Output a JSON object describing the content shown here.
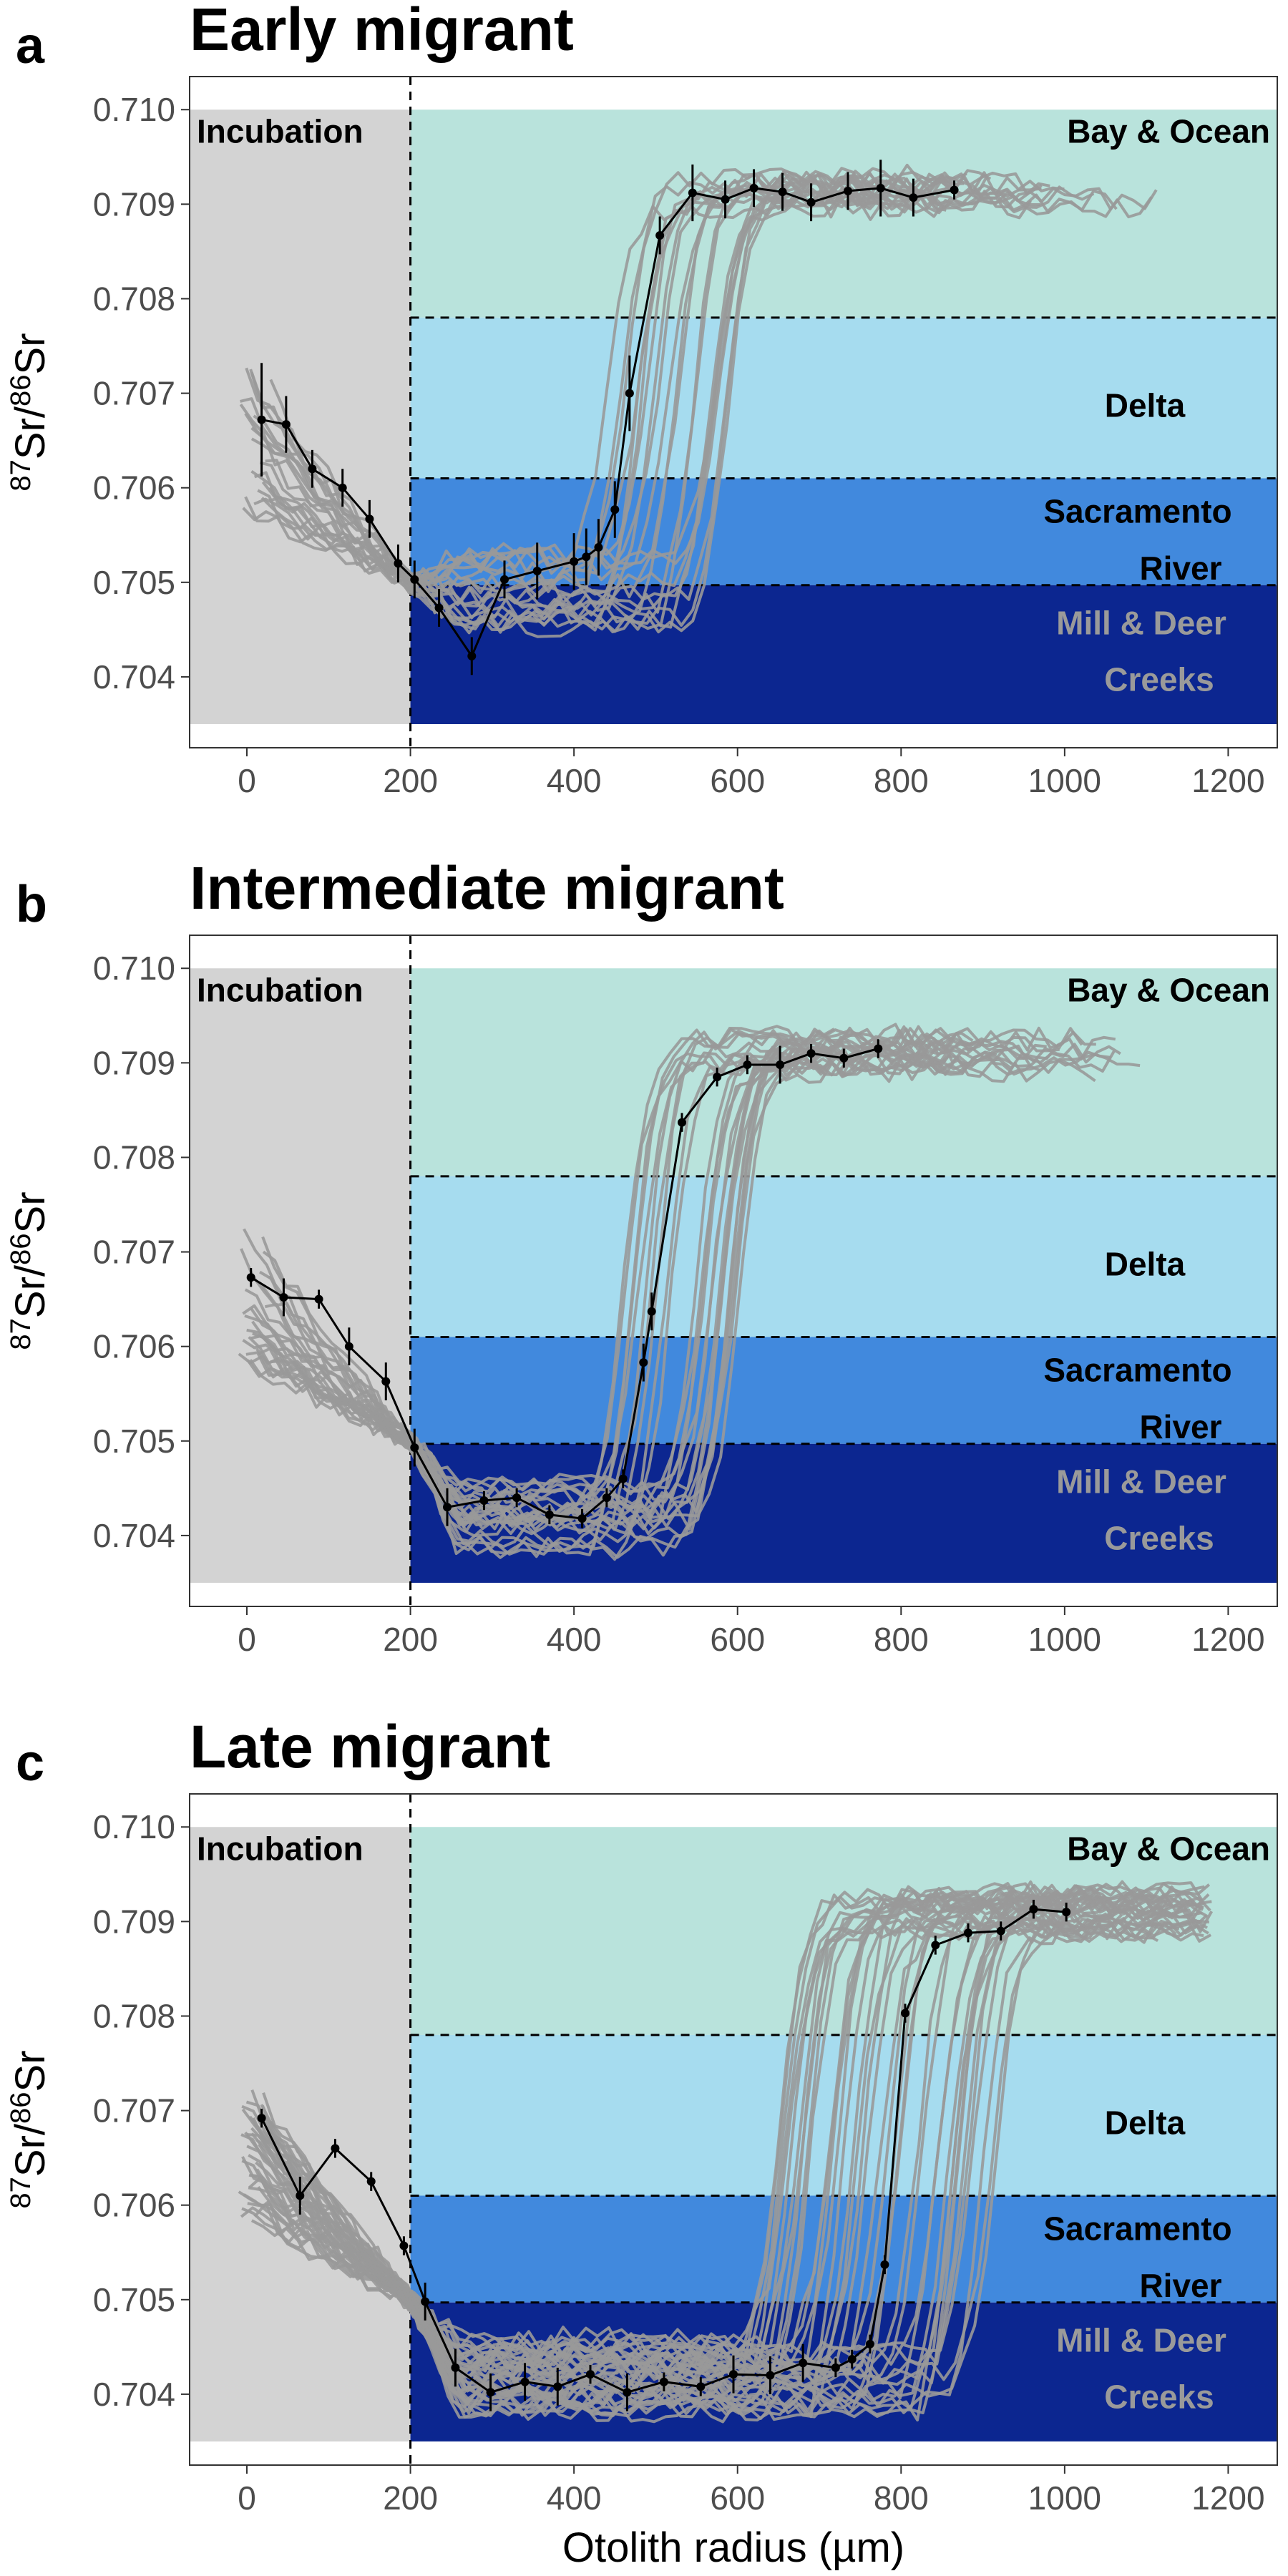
{
  "figure": {
    "x_axis_title": "Otolith radius (µm)",
    "y_axis_title": {
      "sup1": "87",
      "base1": "Sr/",
      "sup2": "86",
      "base2": "Sr"
    }
  },
  "colors": {
    "incubation": "#d3d3d3",
    "bay_ocean": "#b9e3dc",
    "delta": "#a6dcef",
    "sacramento": "#4189dd",
    "mill_deer": "#0c2690",
    "fish_lines": "#999999",
    "mean_line": "#000000",
    "mill_deer_label": "#9a9a9a"
  },
  "zone_labels": {
    "incubation": "Incubation",
    "bay_ocean": "Bay & Ocean",
    "delta": "Delta",
    "sacramento_line1": "Sacramento",
    "sacramento_line2": "River",
    "mill_deer_line1": "Mill & Deer",
    "mill_deer_line2": "Creeks"
  },
  "panels": [
    {
      "letter": "a",
      "title": "Early migrant"
    },
    {
      "letter": "b",
      "title": "Intermediate migrant"
    },
    {
      "letter": "c",
      "title": "Late migrant"
    }
  ],
  "chart_data": [
    {
      "type": "line",
      "title": "Early migrant",
      "xlabel": "",
      "ylabel": "87Sr/86Sr",
      "xlim": [
        -70,
        1260
      ],
      "ylim": [
        0.70325,
        0.71035
      ],
      "xticks": [
        0,
        200,
        400,
        600,
        800,
        1000,
        1200
      ],
      "yticks": [
        0.704,
        0.705,
        0.706,
        0.707,
        0.708,
        0.709,
        0.71
      ],
      "ytick_labels": [
        "0.704",
        "0.705",
        "0.706",
        "0.707",
        "0.708",
        "0.709",
        "0.710"
      ],
      "grid": false,
      "legend": "none",
      "incubation_x": [
        -70,
        200
      ],
      "zones": [
        {
          "name": "Bay & Ocean",
          "y": [
            0.7078,
            0.71
          ]
        },
        {
          "name": "Delta",
          "y": [
            0.7061,
            0.7078
          ]
        },
        {
          "name": "Sacramento River",
          "y": [
            0.70497,
            0.7061
          ]
        },
        {
          "name": "Mill & Deer Creeks",
          "y": [
            0.7035,
            0.70497
          ]
        }
      ],
      "transition_x_range": [
        440,
        590
      ],
      "n_individuals": 22,
      "mean_series": [
        {
          "x": 18,
          "y": 0.70672,
          "err": 0.0006
        },
        {
          "x": 48,
          "y": 0.70667,
          "err": 0.0003
        },
        {
          "x": 80,
          "y": 0.7062,
          "err": 0.0002
        },
        {
          "x": 117,
          "y": 0.706,
          "err": 0.0002
        },
        {
          "x": 150,
          "y": 0.70567,
          "err": 0.0002
        },
        {
          "x": 185,
          "y": 0.7052,
          "err": 0.0002
        },
        {
          "x": 205,
          "y": 0.70503,
          "err": 0.0002
        },
        {
          "x": 235,
          "y": 0.70473,
          "err": 0.0002
        },
        {
          "x": 275,
          "y": 0.70422,
          "err": 0.0002
        },
        {
          "x": 315,
          "y": 0.70503,
          "err": 0.0002
        },
        {
          "x": 355,
          "y": 0.70512,
          "err": 0.0003
        },
        {
          "x": 400,
          "y": 0.70522,
          "err": 0.0003
        },
        {
          "x": 415,
          "y": 0.70527,
          "err": 0.0003
        },
        {
          "x": 430,
          "y": 0.70537,
          "err": 0.0003
        },
        {
          "x": 450,
          "y": 0.70577,
          "err": 0.0003
        },
        {
          "x": 468,
          "y": 0.707,
          "err": 0.0004
        },
        {
          "x": 505,
          "y": 0.70867,
          "err": 0.0002
        },
        {
          "x": 545,
          "y": 0.70912,
          "err": 0.0003
        },
        {
          "x": 585,
          "y": 0.70905,
          "err": 0.0002
        },
        {
          "x": 620,
          "y": 0.70917,
          "err": 0.0002
        },
        {
          "x": 655,
          "y": 0.70913,
          "err": 0.0002
        },
        {
          "x": 690,
          "y": 0.70902,
          "err": 0.0002
        },
        {
          "x": 735,
          "y": 0.70914,
          "err": 0.0002
        },
        {
          "x": 775,
          "y": 0.70917,
          "err": 0.0003
        },
        {
          "x": 815,
          "y": 0.70907,
          "err": 0.0002
        },
        {
          "x": 865,
          "y": 0.70915,
          "err": 0.0001
        }
      ]
    },
    {
      "type": "line",
      "title": "Intermediate migrant",
      "xlabel": "",
      "ylabel": "87Sr/86Sr",
      "xlim": [
        -70,
        1260
      ],
      "ylim": [
        0.70325,
        0.71035
      ],
      "xticks": [
        0,
        200,
        400,
        600,
        800,
        1000,
        1200
      ],
      "yticks": [
        0.704,
        0.705,
        0.706,
        0.707,
        0.708,
        0.709,
        0.71
      ],
      "ytick_labels": [
        "0.704",
        "0.705",
        "0.706",
        "0.707",
        "0.708",
        "0.709",
        "0.710"
      ],
      "grid": false,
      "legend": "none",
      "incubation_x": [
        -70,
        200
      ],
      "zones": [
        {
          "name": "Bay & Ocean",
          "y": [
            0.7078,
            0.71
          ]
        },
        {
          "name": "Delta",
          "y": [
            0.7061,
            0.7078
          ]
        },
        {
          "name": "Sacramento River",
          "y": [
            0.70497,
            0.7061
          ]
        },
        {
          "name": "Mill & Deer Creeks",
          "y": [
            0.7035,
            0.70497
          ]
        }
      ],
      "transition_x_range": [
        460,
        610
      ],
      "n_individuals": 26,
      "mean_series": [
        {
          "x": 5,
          "y": 0.70673,
          "err": 0.0001
        },
        {
          "x": 45,
          "y": 0.70652,
          "err": 0.0002
        },
        {
          "x": 88,
          "y": 0.7065,
          "err": 0.0001
        },
        {
          "x": 125,
          "y": 0.706,
          "err": 0.0002
        },
        {
          "x": 170,
          "y": 0.70563,
          "err": 0.0002
        },
        {
          "x": 205,
          "y": 0.70493,
          "err": 0.0002
        },
        {
          "x": 245,
          "y": 0.7043,
          "err": 0.0002
        },
        {
          "x": 290,
          "y": 0.70437,
          "err": 0.0001
        },
        {
          "x": 330,
          "y": 0.7044,
          "err": 0.0001
        },
        {
          "x": 370,
          "y": 0.70422,
          "err": 0.0001
        },
        {
          "x": 410,
          "y": 0.70418,
          "err": 0.0001
        },
        {
          "x": 440,
          "y": 0.7044,
          "err": 0.0001
        },
        {
          "x": 460,
          "y": 0.7046,
          "err": 0.0001
        },
        {
          "x": 485,
          "y": 0.70583,
          "err": 0.0002
        },
        {
          "x": 495,
          "y": 0.70637,
          "err": 0.0002
        },
        {
          "x": 532,
          "y": 0.70837,
          "err": 0.0001
        },
        {
          "x": 575,
          "y": 0.70885,
          "err": 0.0001
        },
        {
          "x": 612,
          "y": 0.70898,
          "err": 0.0001
        },
        {
          "x": 652,
          "y": 0.70898,
          "err": 0.0002
        },
        {
          "x": 690,
          "y": 0.7091,
          "err": 0.0001
        },
        {
          "x": 730,
          "y": 0.70905,
          "err": 0.0001
        },
        {
          "x": 772,
          "y": 0.70915,
          "err": 0.0001
        }
      ]
    },
    {
      "type": "line",
      "title": "Late migrant",
      "xlabel": "Otolith radius (µm)",
      "ylabel": "87Sr/86Sr",
      "xlim": [
        -70,
        1260
      ],
      "ylim": [
        0.70325,
        0.71035
      ],
      "xticks": [
        0,
        200,
        400,
        600,
        800,
        1000,
        1200
      ],
      "yticks": [
        0.704,
        0.705,
        0.706,
        0.707,
        0.708,
        0.709,
        0.71
      ],
      "ytick_labels": [
        "0.704",
        "0.705",
        "0.706",
        "0.707",
        "0.708",
        "0.709",
        "0.710"
      ],
      "grid": false,
      "legend": "none",
      "incubation_x": [
        -70,
        200
      ],
      "zones": [
        {
          "name": "Bay & Ocean",
          "y": [
            0.7078,
            0.71
          ]
        },
        {
          "name": "Delta",
          "y": [
            0.7061,
            0.7078
          ]
        },
        {
          "name": "Sacramento River",
          "y": [
            0.70497,
            0.7061
          ]
        },
        {
          "name": "Mill & Deer Creeks",
          "y": [
            0.7035,
            0.70497
          ]
        }
      ],
      "transition_x_range": [
        640,
        930
      ],
      "n_individuals": 40,
      "mean_series": [
        {
          "x": 18,
          "y": 0.70692,
          "err": 0.0001
        },
        {
          "x": 65,
          "y": 0.7061,
          "err": 0.0002
        },
        {
          "x": 108,
          "y": 0.7066,
          "err": 0.0001
        },
        {
          "x": 152,
          "y": 0.70625,
          "err": 0.0001
        },
        {
          "x": 192,
          "y": 0.70557,
          "err": 0.0001
        },
        {
          "x": 218,
          "y": 0.70498,
          "err": 0.0002
        },
        {
          "x": 255,
          "y": 0.70428,
          "err": 0.0002
        },
        {
          "x": 298,
          "y": 0.70402,
          "err": 0.0002
        },
        {
          "x": 340,
          "y": 0.70413,
          "err": 0.0002
        },
        {
          "x": 380,
          "y": 0.70408,
          "err": 0.0002
        },
        {
          "x": 420,
          "y": 0.70421,
          "err": 0.0001
        },
        {
          "x": 465,
          "y": 0.70402,
          "err": 0.0002
        },
        {
          "x": 510,
          "y": 0.70413,
          "err": 0.0001
        },
        {
          "x": 555,
          "y": 0.70408,
          "err": 0.0001
        },
        {
          "x": 595,
          "y": 0.70421,
          "err": 0.0002
        },
        {
          "x": 640,
          "y": 0.7042,
          "err": 0.0002
        },
        {
          "x": 680,
          "y": 0.70433,
          "err": 0.0002
        },
        {
          "x": 720,
          "y": 0.70428,
          "err": 0.0001
        },
        {
          "x": 740,
          "y": 0.70437,
          "err": 0.0001
        },
        {
          "x": 762,
          "y": 0.70453,
          "err": 0.0001
        },
        {
          "x": 780,
          "y": 0.70537,
          "err": 0.0001
        },
        {
          "x": 805,
          "y": 0.70803,
          "err": 0.0001
        },
        {
          "x": 842,
          "y": 0.70875,
          "err": 0.0001
        },
        {
          "x": 882,
          "y": 0.70888,
          "err": 0.0001
        },
        {
          "x": 922,
          "y": 0.7089,
          "err": 0.0001
        },
        {
          "x": 962,
          "y": 0.70913,
          "err": 0.0001
        },
        {
          "x": 1002,
          "y": 0.7091,
          "err": 0.0001
        }
      ]
    }
  ]
}
